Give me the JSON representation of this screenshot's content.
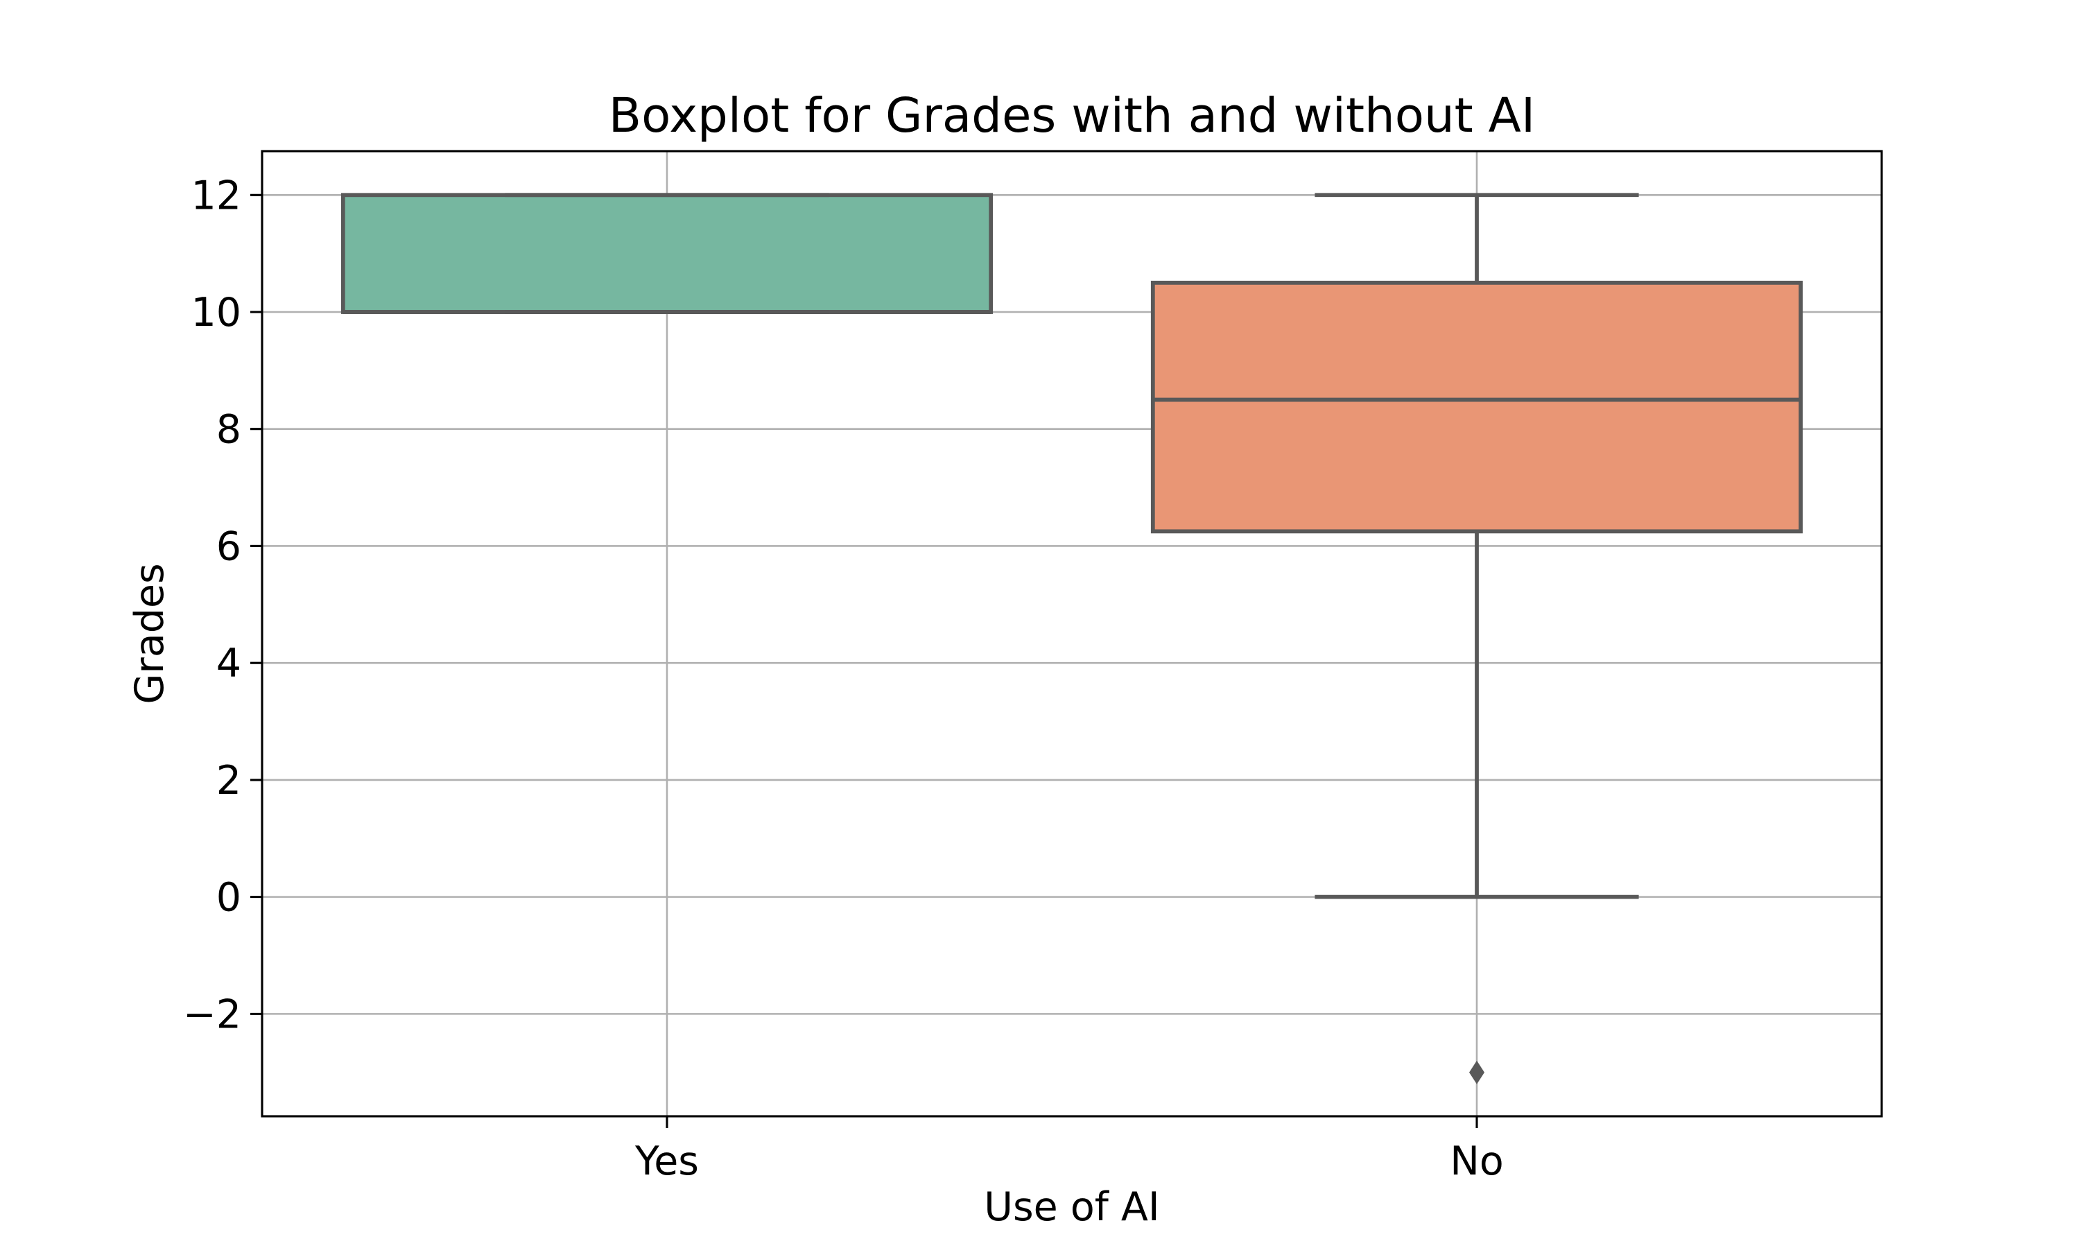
{
  "chart_data": {
    "type": "boxplot",
    "title": "Boxplot for Grades with and without AI",
    "xlabel": "Use of AI",
    "ylabel": "Grades",
    "categories": [
      "Yes",
      "No"
    ],
    "ylim": [
      -3.75,
      12.75
    ],
    "yticks": [
      -2,
      0,
      2,
      4,
      6,
      8,
      10,
      12
    ],
    "ytick_labels": [
      "−2",
      "0",
      "2",
      "4",
      "6",
      "8",
      "10",
      "12"
    ],
    "grid": true,
    "boxes": [
      {
        "category": "Yes",
        "q1": 10,
        "median": 10,
        "q3": 12,
        "whisker_low": 10,
        "whisker_high": 12,
        "outliers": [],
        "color": "#76b7a0"
      },
      {
        "category": "No",
        "q1": 6.25,
        "median": 8.5,
        "q3": 10.5,
        "whisker_low": 0,
        "whisker_high": 12,
        "outliers": [
          -3
        ],
        "color": "#e99675"
      }
    ],
    "line_color": "#595959"
  }
}
